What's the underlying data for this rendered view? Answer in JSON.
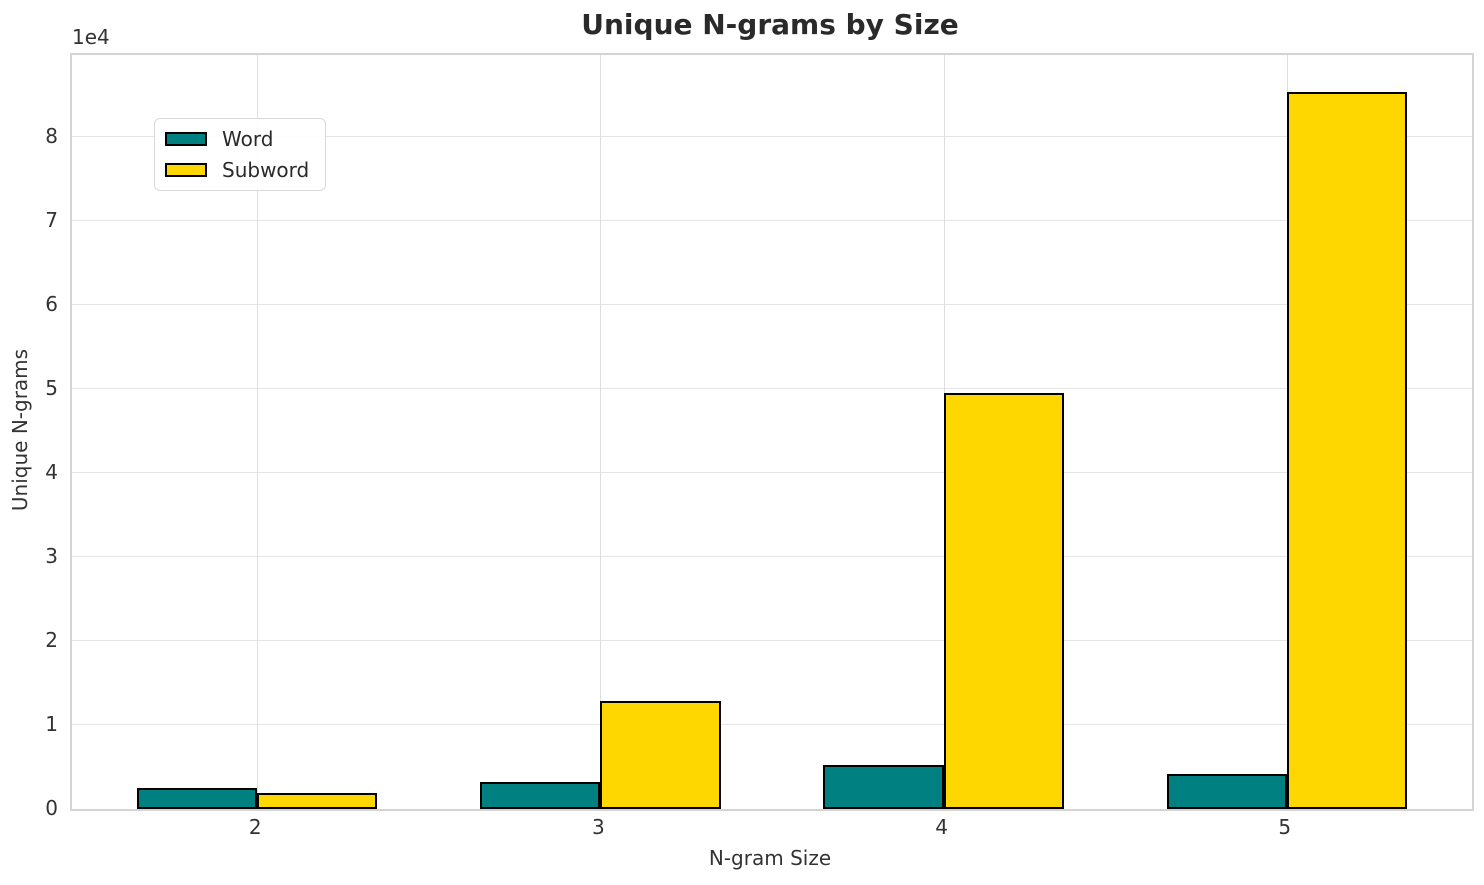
{
  "chart_data": {
    "type": "bar",
    "title": "Unique N-grams by Size",
    "xlabel": "N-gram Size",
    "ylabel": "Unique N-grams",
    "y_offset_label": "1e4",
    "categories": [
      "2",
      "3",
      "4",
      "5"
    ],
    "x_positions": [
      2,
      3,
      4,
      5
    ],
    "series": [
      {
        "name": "Word",
        "color": "#008080",
        "values": [
          2550,
          3200,
          5250,
          4200
        ]
      },
      {
        "name": "Subword",
        "color": "#FFD700",
        "values": [
          1900,
          12800,
          49500,
          85300
        ]
      }
    ],
    "bar_edge_color": "#000000",
    "bar_width_data_units": 0.35,
    "xlim": [
      1.46,
      5.54
    ],
    "ylim": [
      0,
      89700
    ],
    "yticks": [
      0,
      10000,
      20000,
      30000,
      40000,
      50000,
      60000,
      70000,
      80000
    ],
    "ytick_labels": [
      "0",
      "1",
      "2",
      "3",
      "4",
      "5",
      "6",
      "7",
      "8"
    ],
    "grid": true,
    "legend_position": "upper left",
    "grid_color_h": "#e5e5e5",
    "grid_color_v": "#dedede",
    "spine_color": "#d4d4d4",
    "text_color": "#333333",
    "title_color": "#2a2a2a",
    "background_color": "#ffffff"
  }
}
